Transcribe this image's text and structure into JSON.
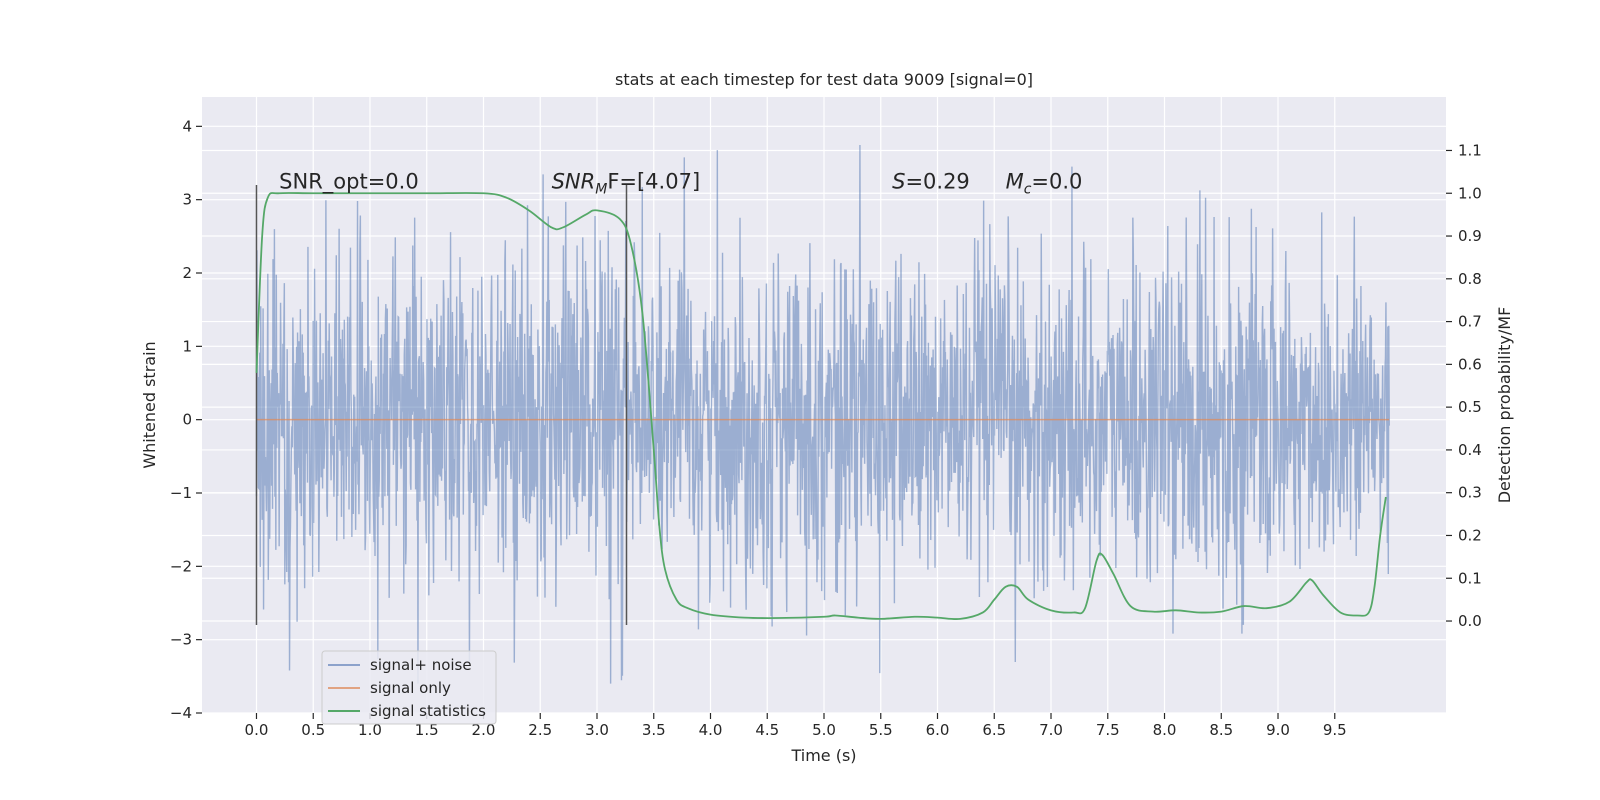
{
  "chart_data": {
    "type": "line",
    "title": "stats at each timestep for test data 9009 [signal=0]",
    "xlabel": "Time (s)",
    "ylabel": "Whitened strain",
    "y2label": "Detection probability/MF",
    "xlim": [
      -0.48,
      10.48
    ],
    "ylim": [
      -4.0,
      4.4
    ],
    "y2lim": [
      -0.215,
      1.225
    ],
    "xticks": [
      "0.0",
      "0.5",
      "1.0",
      "1.5",
      "2.0",
      "2.5",
      "3.0",
      "3.5",
      "4.0",
      "4.5",
      "5.0",
      "5.5",
      "6.0",
      "6.5",
      "7.0",
      "7.5",
      "8.0",
      "8.5",
      "9.0",
      "9.5"
    ],
    "yticks": [
      "4",
      "3",
      "2",
      "1",
      "0",
      "−1",
      "−2",
      "−3",
      "−4"
    ],
    "y2ticks": [
      "1.1",
      "1.0",
      "0.9",
      "0.8",
      "0.7",
      "0.6",
      "0.5",
      "0.4",
      "0.3",
      "0.2",
      "0.1",
      "0.0"
    ],
    "grid": true,
    "legend_position": "lower-left",
    "colors": {
      "noise": "#4c72b0",
      "signal": "#dd8452",
      "stats": "#55a868",
      "marker": "#555555",
      "plot_bg": "#eaeaf2"
    },
    "series": [
      {
        "name": "signal+ noise",
        "axis": "left",
        "kind": "noise",
        "noise_envelope": {
          "typical_abs": 1.1,
          "peak_max": 4.05,
          "peak_min": -3.6,
          "t_range": [
            0.0,
            9.98
          ]
        }
      },
      {
        "name": "signal only",
        "axis": "left",
        "x": [
          0.0,
          9.98
        ],
        "y": [
          0.0,
          0.0
        ]
      },
      {
        "name": "signal statistics",
        "axis": "right",
        "x": [
          0.0,
          0.05,
          0.1,
          0.2,
          0.5,
          1.0,
          1.5,
          2.0,
          2.2,
          2.4,
          2.6,
          2.7,
          2.9,
          3.0,
          3.2,
          3.3,
          3.4,
          3.5,
          3.55,
          3.6,
          3.7,
          3.8,
          4.0,
          4.3,
          4.6,
          5.0,
          5.1,
          5.3,
          5.5,
          5.8,
          6.0,
          6.2,
          6.4,
          6.5,
          6.6,
          6.7,
          6.8,
          7.0,
          7.2,
          7.3,
          7.4,
          7.45,
          7.55,
          7.7,
          7.9,
          8.1,
          8.3,
          8.5,
          8.7,
          8.9,
          9.1,
          9.25,
          9.3,
          9.4,
          9.55,
          9.7,
          9.8,
          9.85,
          9.9,
          9.95
        ],
        "y": [
          0.58,
          0.9,
          0.99,
          1.0,
          1.0,
          1.0,
          1.0,
          1.0,
          0.99,
          0.96,
          0.92,
          0.92,
          0.95,
          0.96,
          0.94,
          0.88,
          0.72,
          0.4,
          0.22,
          0.12,
          0.05,
          0.03,
          0.015,
          0.008,
          0.007,
          0.01,
          0.013,
          0.008,
          0.005,
          0.01,
          0.008,
          0.005,
          0.02,
          0.05,
          0.08,
          0.08,
          0.05,
          0.025,
          0.02,
          0.03,
          0.14,
          0.155,
          0.11,
          0.035,
          0.022,
          0.025,
          0.02,
          0.022,
          0.035,
          0.03,
          0.045,
          0.09,
          0.095,
          0.06,
          0.02,
          0.013,
          0.02,
          0.08,
          0.2,
          0.29
        ]
      }
    ],
    "markers": {
      "x": [
        0.0,
        3.26
      ],
      "y_range": [
        -2.8,
        3.2
      ]
    },
    "annotations": [
      {
        "segments": [
          {
            "text": "SNR_opt=0.0",
            "italic": false
          }
        ],
        "x": 0.2,
        "y": 3.15
      },
      {
        "segments": [
          {
            "text": "SNR",
            "italic": true
          },
          {
            "text": "M",
            "italic": true,
            "sub": true
          },
          {
            "text": "F=[4.07]",
            "italic": false
          }
        ],
        "x": 2.6,
        "y": 3.15
      },
      {
        "segments": [
          {
            "text": "S",
            "italic": true
          },
          {
            "text": "=0.29",
            "italic": false
          }
        ],
        "x": 5.6,
        "y": 3.15
      },
      {
        "segments": [
          {
            "text": "M",
            "italic": true
          },
          {
            "text": "c",
            "italic": true,
            "sub": true
          },
          {
            "text": "=0.0",
            "italic": false
          }
        ],
        "x": 6.6,
        "y": 3.15
      }
    ]
  }
}
